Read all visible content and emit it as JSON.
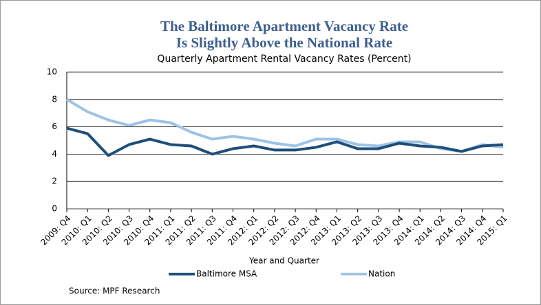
{
  "chart_data": {
    "type": "line",
    "title": [
      "The Baltimore Apartment Vacancy Rate",
      "Is Slightly Above the National Rate"
    ],
    "subtitle": "Quarterly Apartment Rental Vacancy Rates (Percent)",
    "x_label": "Year and Quarter",
    "source": "Source: MPF Research",
    "categories": [
      "2009: Q4",
      "2010: Q1",
      "2010: Q2",
      "2010: Q3",
      "2010: Q4",
      "2011: Q1",
      "2011: Q2",
      "2011: Q3",
      "2011: Q4",
      "2012: Q1",
      "2012: Q2",
      "2012: Q3",
      "2012: Q4",
      "2013: Q1",
      "2013: Q2",
      "2013: Q3",
      "2013: Q4",
      "2014: Q1",
      "2014: Q2",
      "2014: Q3",
      "2014: Q4",
      "2015: Q1"
    ],
    "series": [
      {
        "name": "Baltimore MSA",
        "color": "#1f4e79",
        "values": [
          5.9,
          5.5,
          3.9,
          4.7,
          5.1,
          4.7,
          4.6,
          4.0,
          4.4,
          4.6,
          4.3,
          4.3,
          4.5,
          4.9,
          4.4,
          4.4,
          4.8,
          4.6,
          4.5,
          4.2,
          4.6,
          4.7
        ]
      },
      {
        "name": "Nation",
        "color": "#9dc3e6",
        "values": [
          8.0,
          7.1,
          6.5,
          6.1,
          6.5,
          6.3,
          5.6,
          5.1,
          5.3,
          5.1,
          4.8,
          4.6,
          5.1,
          5.1,
          4.7,
          4.6,
          4.9,
          4.9,
          4.4,
          4.2,
          4.7,
          4.5
        ]
      }
    ],
    "ylim": [
      0,
      10
    ],
    "yticks": [
      0,
      2,
      4,
      6,
      8,
      10
    ],
    "grid": true
  }
}
